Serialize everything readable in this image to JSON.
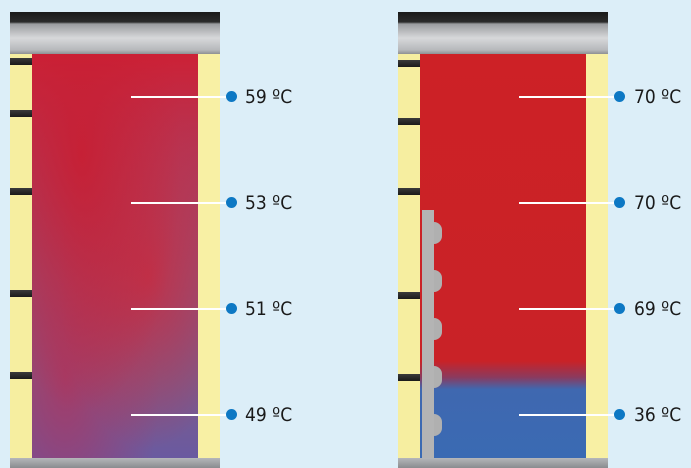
{
  "tanks": [
    {
      "readings": [
        "59 ºC",
        "53 ºC",
        "51 ºC",
        "49 ºC"
      ],
      "colors": {
        "hot": "#cc2136",
        "mixed": "#8a5282"
      }
    },
    {
      "readings": [
        "70 ºC",
        "70 ºC",
        "69 ºC",
        "36 ºC"
      ],
      "colors": {
        "hot": "#cd2126",
        "cold": "#3a6ab3"
      }
    }
  ],
  "marker_color": "#0d78c4"
}
